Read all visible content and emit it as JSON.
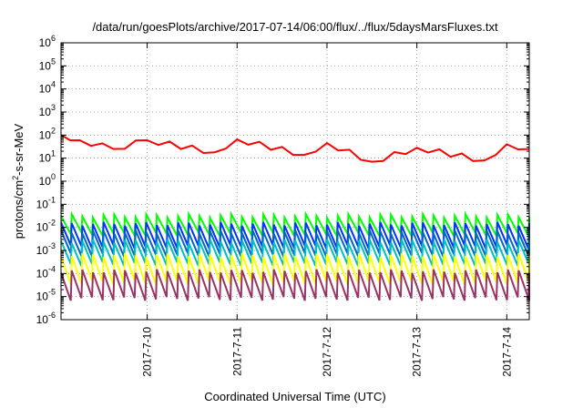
{
  "chart_data": {
    "type": "line",
    "title": "/data/run/goesPlots/archive/2017-07-14/06:00/flux/../flux/5daysMarsFluxes.txt",
    "xlabel": "Coordinated Universal Time (UTC)",
    "ylabel_main": "protons/cm",
    "ylabel_sup": "2",
    "ylabel_rest": "-s-sr-MeV",
    "yscale": "log",
    "ylim_exp": [
      -6,
      6
    ],
    "y_ticks": [
      {
        "base": "10",
        "exp": "6",
        "value": 6
      },
      {
        "base": "10",
        "exp": "5",
        "value": 5
      },
      {
        "base": "10",
        "exp": "4",
        "value": 4
      },
      {
        "base": "10",
        "exp": "3",
        "value": 3
      },
      {
        "base": "10",
        "exp": "2",
        "value": 2
      },
      {
        "base": "10",
        "exp": "1",
        "value": 1
      },
      {
        "base": "10",
        "exp": "0",
        "value": 0
      },
      {
        "base": "10",
        "exp": "-1",
        "value": -1
      },
      {
        "base": "10",
        "exp": "-2",
        "value": -2
      },
      {
        "base": "10",
        "exp": "-3",
        "value": -3
      },
      {
        "base": "10",
        "exp": "-4",
        "value": -4
      },
      {
        "base": "10",
        "exp": "-5",
        "value": -5
      },
      {
        "base": "10",
        "exp": "-6",
        "value": -6
      }
    ],
    "x_range_days": [
      "2017-07-09T01:00",
      "2017-07-14T06:00"
    ],
    "x_ticks": [
      {
        "label": "2017-7-10",
        "value": "2017-07-10T00:00"
      },
      {
        "label": "2017-7-11",
        "value": "2017-07-11T00:00"
      },
      {
        "label": "2017-7-12",
        "value": "2017-07-12T00:00"
      },
      {
        "label": "2017-7-13",
        "value": "2017-07-13T00:00"
      },
      {
        "label": "2017-7-14",
        "value": "2017-07-14T00:00"
      }
    ],
    "grid": true,
    "series": [
      {
        "color": "#ff0000",
        "description": "sawtooth ~1e1 to ~1e2",
        "peaks_log": [
          2.0,
          1.8,
          1.85,
          1.6,
          1.75,
          1.85,
          1.75,
          1.85,
          1.8,
          1.7,
          1.75,
          1.8,
          1.7,
          1.75,
          1.65,
          1.7,
          1.6,
          1.5,
          1.45,
          1.5,
          1.45,
          1.4
        ],
        "sample_points": [
          {
            "x": "2017-07-09T01:00",
            "y": 100
          },
          {
            "x": "2017-07-09T06:00",
            "y": 60
          },
          {
            "x": "2017-07-09T15:00",
            "y": 25
          },
          {
            "x": "2017-07-10T00:00",
            "y": 60
          },
          {
            "x": "2017-07-10T18:00",
            "y": 18
          },
          {
            "x": "2017-07-11T00:00",
            "y": 65
          },
          {
            "x": "2017-07-11T18:00",
            "y": 14
          },
          {
            "x": "2017-07-12T00:00",
            "y": 45
          },
          {
            "x": "2017-07-12T12:00",
            "y": 7
          },
          {
            "x": "2017-07-13T00:00",
            "y": 28
          },
          {
            "x": "2017-07-13T18:00",
            "y": 8
          },
          {
            "x": "2017-07-14T00:00",
            "y": 40
          },
          {
            "x": "2017-07-14T06:00",
            "y": 25
          }
        ]
      },
      {
        "color": "#00ff00",
        "description": "sawtooth ~5e-3 to ~3e-2",
        "peak_log": -1.5,
        "trough_log": -2.3
      },
      {
        "color": "#0033ff",
        "description": "sawtooth ~1e-3 to ~1e-2",
        "peak_log": -1.85,
        "trough_log": -2.85
      },
      {
        "color": "#0066cc",
        "description": "sawtooth ~5e-4 to ~5e-3",
        "peak_log": -2.2,
        "trough_log": -3.2
      },
      {
        "color": "#00bfbf",
        "description": "sawtooth ~3e-4 to ~2e-3",
        "peak_log": -2.6,
        "trough_log": -3.6
      },
      {
        "color": "#ffff00",
        "description": "sawtooth ~3e-5 to ~5e-4",
        "peak_log": -3.2,
        "trough_log": -4.4
      },
      {
        "color": "#993366",
        "description": "sawtooth ~5e-6 to ~1e-4",
        "peak_log": -3.9,
        "trough_log": -5.1
      }
    ]
  }
}
